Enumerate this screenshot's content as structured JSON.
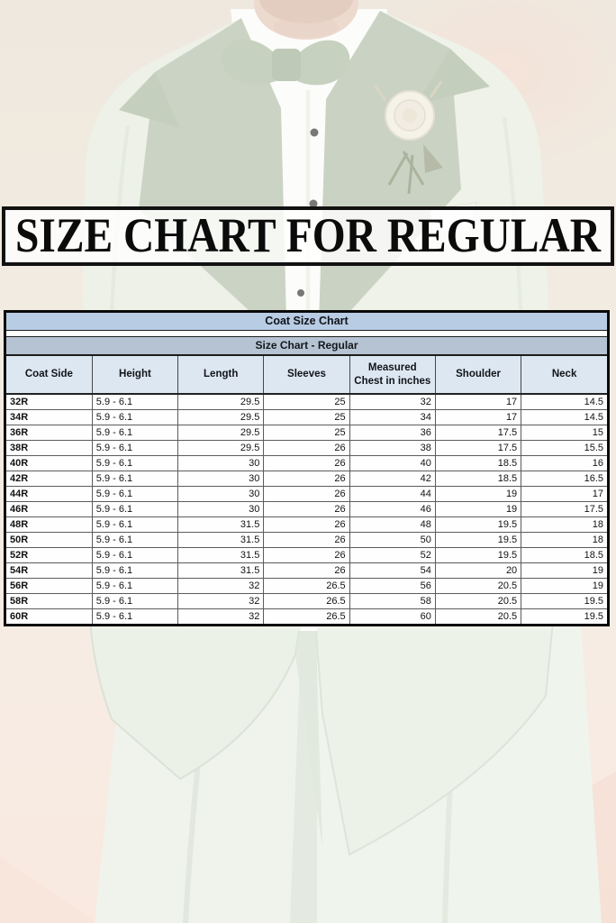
{
  "banner": {
    "title": "SIZE CHART FOR REGULAR"
  },
  "size_chart": {
    "title": "Coat Size Chart",
    "subtitle": "Size Chart - Regular",
    "columns": [
      "Coat Side",
      "Height",
      "Length",
      "Sleeves",
      "Measured Chest in inches",
      "Shoulder",
      "Neck"
    ],
    "rows": [
      [
        "32R",
        "5.9 - 6.1",
        "29.5",
        "25",
        "32",
        "17",
        "14.5"
      ],
      [
        "34R",
        "5.9 - 6.1",
        "29.5",
        "25",
        "34",
        "17",
        "14.5"
      ],
      [
        "36R",
        "5.9 - 6.1",
        "29.5",
        "25",
        "36",
        "17.5",
        "15"
      ],
      [
        "38R",
        "5.9 - 6.1",
        "29.5",
        "26",
        "38",
        "17.5",
        "15.5"
      ],
      [
        "40R",
        "5.9 - 6.1",
        "30",
        "26",
        "40",
        "18.5",
        "16"
      ],
      [
        "42R",
        "5.9 - 6.1",
        "30",
        "26",
        "42",
        "18.5",
        "16.5"
      ],
      [
        "44R",
        "5.9 - 6.1",
        "30",
        "26",
        "44",
        "19",
        "17"
      ],
      [
        "46R",
        "5.9 - 6.1",
        "30",
        "26",
        "46",
        "19",
        "17.5"
      ],
      [
        "48R",
        "5.9 - 6.1",
        "31.5",
        "26",
        "48",
        "19.5",
        "18"
      ],
      [
        "50R",
        "5.9 - 6.1",
        "31.5",
        "26",
        "50",
        "19.5",
        "18"
      ],
      [
        "52R",
        "5.9 - 6.1",
        "31.5",
        "26",
        "52",
        "19.5",
        "18.5"
      ],
      [
        "54R",
        "5.9 - 6.1",
        "31.5",
        "26",
        "54",
        "20",
        "19"
      ],
      [
        "56R",
        "5.9 - 6.1",
        "32",
        "26.5",
        "56",
        "20.5",
        "19"
      ],
      [
        "58R",
        "5.9 - 6.1",
        "32",
        "26.5",
        "58",
        "20.5",
        "19.5"
      ],
      [
        "60R",
        "5.9 - 6.1",
        "32",
        "26.5",
        "60",
        "20.5",
        "19.5"
      ]
    ]
  },
  "colors": {
    "table_title_bg": "#b8cce4",
    "table_subtitle_bg": "#b5c3d2",
    "table_header_bg": "#dde7f2",
    "row_label_bg": "#b2bfcc",
    "table_border": "#0a0a0a",
    "banner_border": "#121212",
    "suit_mint": "#e6ecdf",
    "lapel_sage": "#b5c2ab",
    "background_cream": "#ece3d5",
    "background_pink": "#f6e2d6"
  }
}
